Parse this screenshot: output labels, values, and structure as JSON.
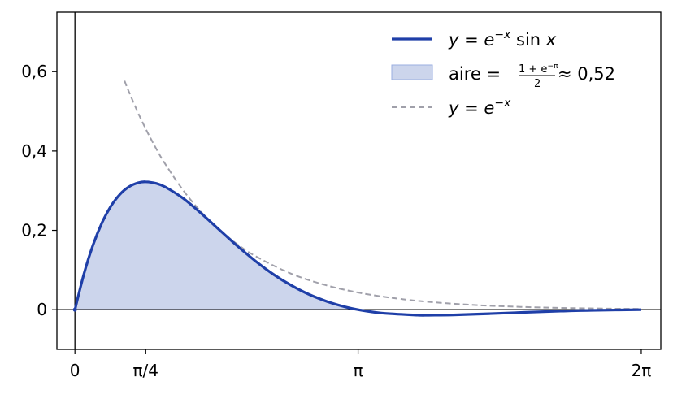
{
  "chart_data": {
    "type": "line",
    "xlim": [
      -0.2,
      6.5
    ],
    "ylim": [
      -0.1,
      0.75
    ],
    "grid": false,
    "legend_position": "top-right",
    "x_ticks": [
      {
        "value": 0,
        "label": "0"
      },
      {
        "value": 0.7854,
        "label": "π/4"
      },
      {
        "value": 3.1416,
        "label": "π"
      },
      {
        "value": 6.2832,
        "label": "2π"
      }
    ],
    "y_ticks": [
      {
        "value": 0,
        "label": "0"
      },
      {
        "value": 0.2,
        "label": "0,2"
      },
      {
        "value": 0.4,
        "label": "0,4"
      },
      {
        "value": 0.6,
        "label": "0,6"
      }
    ],
    "series": [
      {
        "name": "y = e^{-x} sin x",
        "style": "solid",
        "color": "#1f3fa8",
        "x": [
          0,
          0.1,
          0.2,
          0.3,
          0.4,
          0.5,
          0.6,
          0.7,
          0.7854,
          0.9,
          1.0,
          1.2,
          1.4,
          1.6,
          1.8,
          2.0,
          2.2,
          2.4,
          2.6,
          2.8,
          3.0,
          3.1416,
          3.4,
          3.8,
          3.927,
          4.2,
          4.6,
          5.0,
          5.4,
          5.8,
          6.2832
        ],
        "y": [
          0,
          0.0903,
          0.1627,
          0.2189,
          0.261,
          0.2908,
          0.3099,
          0.3199,
          0.3224,
          0.3184,
          0.3096,
          0.2807,
          0.243,
          0.2018,
          0.161,
          0.1231,
          0.0894,
          0.0613,
          0.0383,
          0.0205,
          0.007,
          0,
          -0.0084,
          -0.0137,
          -0.0139,
          -0.0131,
          -0.01,
          -0.0065,
          -0.0035,
          -0.0014,
          0
        ]
      },
      {
        "name": "y = e^{-x}",
        "style": "dashed",
        "color": "#a0a0aa",
        "x": [
          0.55,
          0.6,
          0.7,
          0.8,
          0.9,
          1.0,
          1.2,
          1.4,
          1.6,
          1.8,
          2.0,
          2.4,
          2.8,
          3.2,
          3.6,
          4.0,
          4.5,
          5.0,
          5.5,
          6.0,
          6.2832
        ],
        "y": [
          0.5769,
          0.5488,
          0.4966,
          0.4493,
          0.4066,
          0.3679,
          0.3012,
          0.2466,
          0.2019,
          0.1653,
          0.1353,
          0.0907,
          0.0608,
          0.0408,
          0.0273,
          0.0183,
          0.0111,
          0.0067,
          0.0041,
          0.0025,
          0.0019
        ]
      }
    ],
    "filled_area": {
      "name": "aire = (1 + e^{-π})/2 ≈ 0,52",
      "from_x": 0,
      "to_x": 3.1416,
      "color": "#ccd5ec",
      "value": 0.52
    },
    "legend": {
      "line_y": "e",
      "line_exp": "−x",
      "line_fn": "sin",
      "line_var": "x",
      "area_word": "aire",
      "area_numerator": "1 + e",
      "area_numerator_exp": "−π",
      "area_denominator": "2",
      "area_approx": "≈ 0,52",
      "dashed_y": "e",
      "dashed_exp": "−x"
    }
  }
}
